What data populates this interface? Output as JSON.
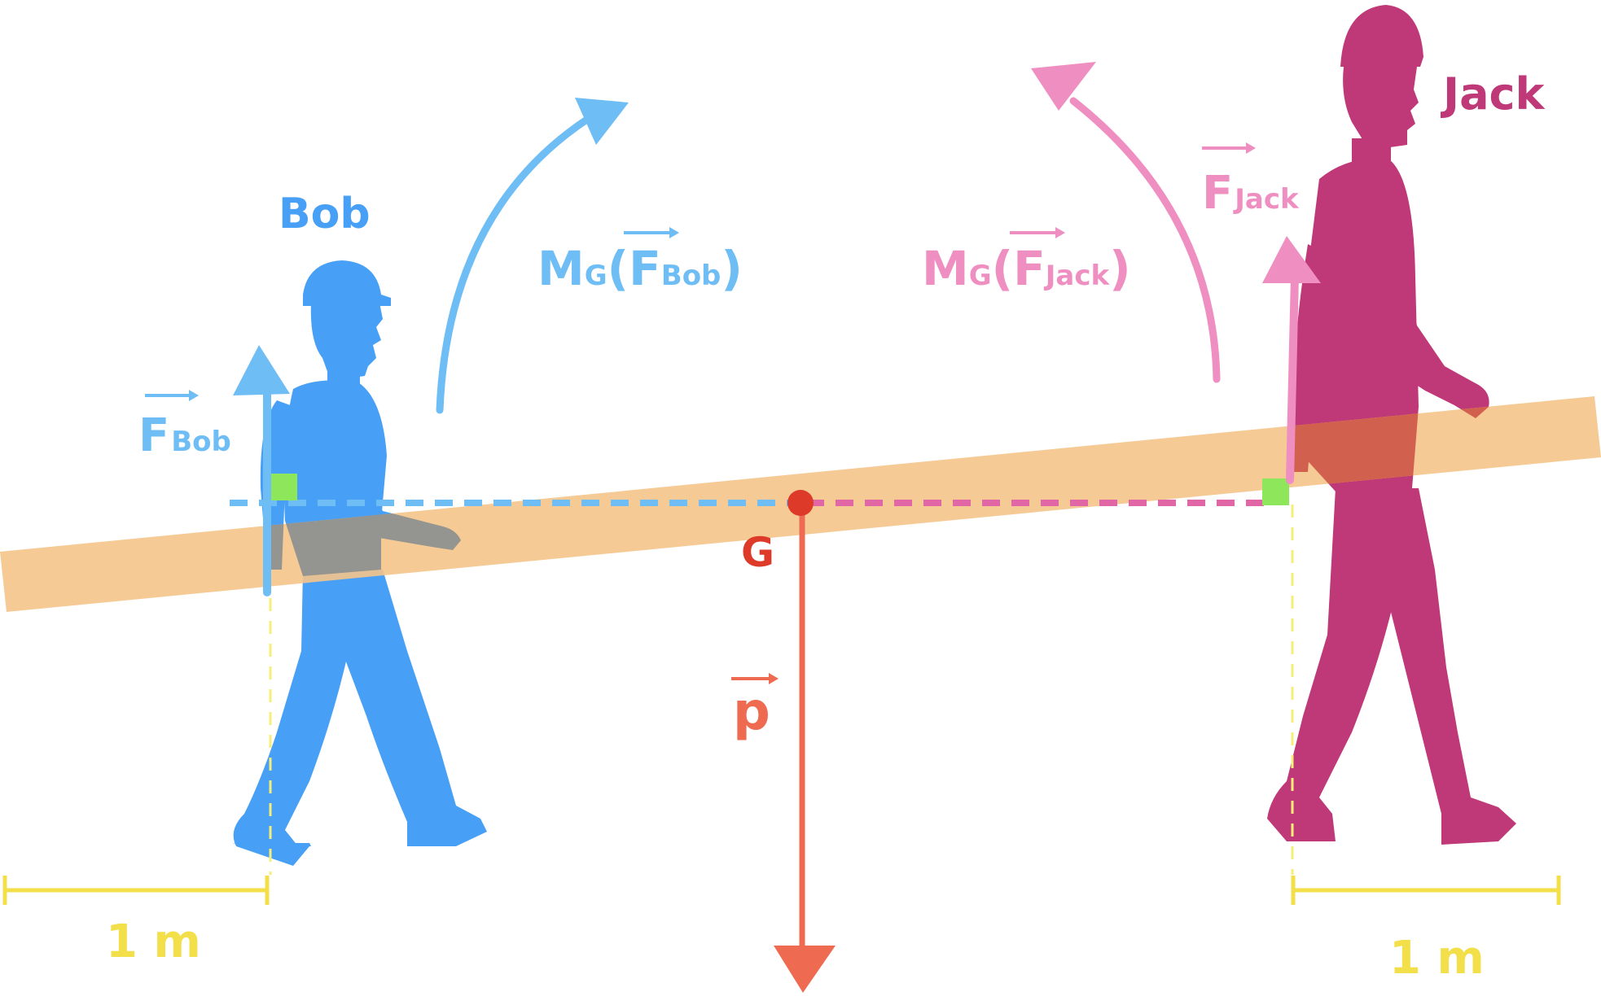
{
  "people": {
    "bob": {
      "name": "Bob",
      "color": "#47a0f6"
    },
    "jack": {
      "name": "Jack",
      "color": "#bf3878"
    }
  },
  "forces": {
    "bob": {
      "symbol": "F",
      "subscript": "Bob",
      "color": "#6ebdf5"
    },
    "jack": {
      "symbol": "F",
      "subscript": "Jack",
      "color": "#ef8fc1"
    },
    "weight": {
      "symbol": "p",
      "color": "#ee6a50"
    }
  },
  "moments": {
    "bob": {
      "prefix": "M",
      "point": "G",
      "open": "(",
      "symbol": "F",
      "subscript": "Bob",
      "close": ")",
      "color": "#6ebdf5"
    },
    "jack": {
      "prefix": "M",
      "point": "G",
      "open": "(",
      "symbol": "F",
      "subscript": "Jack",
      "close": ")",
      "color": "#ef8fc1"
    }
  },
  "center": {
    "label": "G",
    "color": "#dd3a2a"
  },
  "dimensions": {
    "left": {
      "label": "1 m",
      "color": "#f2df4a"
    },
    "right": {
      "label": "1 m",
      "color": "#f2df4a"
    }
  },
  "colors": {
    "plank": "#f5c48a",
    "grip": "#8ee65a",
    "dashed_bob": "#6ebdf5",
    "dashed_jack": "#e066a6",
    "overlap": "#949590",
    "overlap_jack": "#d2604f"
  }
}
